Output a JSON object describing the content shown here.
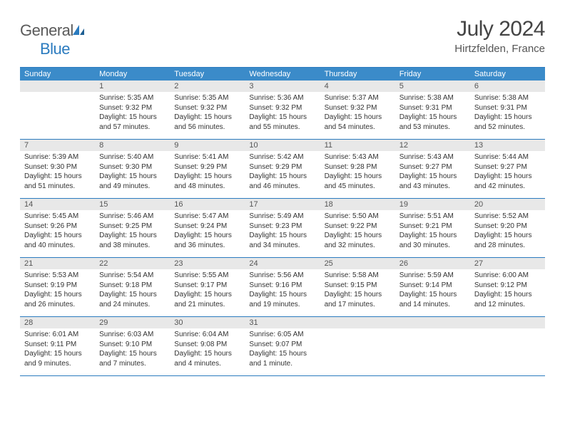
{
  "brand": {
    "general": "General",
    "blue": "Blue"
  },
  "title": "July 2024",
  "location": "Hirtzfelden, France",
  "colors": {
    "header_bg": "#3b8bc9",
    "rule": "#2b7bbf",
    "daynum_bg": "#e8e8e8",
    "text": "#333333"
  },
  "weekdays": [
    "Sunday",
    "Monday",
    "Tuesday",
    "Wednesday",
    "Thursday",
    "Friday",
    "Saturday"
  ],
  "weeks": [
    [
      {
        "n": "",
        "sunrise": "",
        "sunset": "",
        "daylight": ""
      },
      {
        "n": "1",
        "sunrise": "5:35 AM",
        "sunset": "9:32 PM",
        "daylight": "15 hours and 57 minutes."
      },
      {
        "n": "2",
        "sunrise": "5:35 AM",
        "sunset": "9:32 PM",
        "daylight": "15 hours and 56 minutes."
      },
      {
        "n": "3",
        "sunrise": "5:36 AM",
        "sunset": "9:32 PM",
        "daylight": "15 hours and 55 minutes."
      },
      {
        "n": "4",
        "sunrise": "5:37 AM",
        "sunset": "9:32 PM",
        "daylight": "15 hours and 54 minutes."
      },
      {
        "n": "5",
        "sunrise": "5:38 AM",
        "sunset": "9:31 PM",
        "daylight": "15 hours and 53 minutes."
      },
      {
        "n": "6",
        "sunrise": "5:38 AM",
        "sunset": "9:31 PM",
        "daylight": "15 hours and 52 minutes."
      }
    ],
    [
      {
        "n": "7",
        "sunrise": "5:39 AM",
        "sunset": "9:30 PM",
        "daylight": "15 hours and 51 minutes."
      },
      {
        "n": "8",
        "sunrise": "5:40 AM",
        "sunset": "9:30 PM",
        "daylight": "15 hours and 49 minutes."
      },
      {
        "n": "9",
        "sunrise": "5:41 AM",
        "sunset": "9:29 PM",
        "daylight": "15 hours and 48 minutes."
      },
      {
        "n": "10",
        "sunrise": "5:42 AM",
        "sunset": "9:29 PM",
        "daylight": "15 hours and 46 minutes."
      },
      {
        "n": "11",
        "sunrise": "5:43 AM",
        "sunset": "9:28 PM",
        "daylight": "15 hours and 45 minutes."
      },
      {
        "n": "12",
        "sunrise": "5:43 AM",
        "sunset": "9:27 PM",
        "daylight": "15 hours and 43 minutes."
      },
      {
        "n": "13",
        "sunrise": "5:44 AM",
        "sunset": "9:27 PM",
        "daylight": "15 hours and 42 minutes."
      }
    ],
    [
      {
        "n": "14",
        "sunrise": "5:45 AM",
        "sunset": "9:26 PM",
        "daylight": "15 hours and 40 minutes."
      },
      {
        "n": "15",
        "sunrise": "5:46 AM",
        "sunset": "9:25 PM",
        "daylight": "15 hours and 38 minutes."
      },
      {
        "n": "16",
        "sunrise": "5:47 AM",
        "sunset": "9:24 PM",
        "daylight": "15 hours and 36 minutes."
      },
      {
        "n": "17",
        "sunrise": "5:49 AM",
        "sunset": "9:23 PM",
        "daylight": "15 hours and 34 minutes."
      },
      {
        "n": "18",
        "sunrise": "5:50 AM",
        "sunset": "9:22 PM",
        "daylight": "15 hours and 32 minutes."
      },
      {
        "n": "19",
        "sunrise": "5:51 AM",
        "sunset": "9:21 PM",
        "daylight": "15 hours and 30 minutes."
      },
      {
        "n": "20",
        "sunrise": "5:52 AM",
        "sunset": "9:20 PM",
        "daylight": "15 hours and 28 minutes."
      }
    ],
    [
      {
        "n": "21",
        "sunrise": "5:53 AM",
        "sunset": "9:19 PM",
        "daylight": "15 hours and 26 minutes."
      },
      {
        "n": "22",
        "sunrise": "5:54 AM",
        "sunset": "9:18 PM",
        "daylight": "15 hours and 24 minutes."
      },
      {
        "n": "23",
        "sunrise": "5:55 AM",
        "sunset": "9:17 PM",
        "daylight": "15 hours and 21 minutes."
      },
      {
        "n": "24",
        "sunrise": "5:56 AM",
        "sunset": "9:16 PM",
        "daylight": "15 hours and 19 minutes."
      },
      {
        "n": "25",
        "sunrise": "5:58 AM",
        "sunset": "9:15 PM",
        "daylight": "15 hours and 17 minutes."
      },
      {
        "n": "26",
        "sunrise": "5:59 AM",
        "sunset": "9:14 PM",
        "daylight": "15 hours and 14 minutes."
      },
      {
        "n": "27",
        "sunrise": "6:00 AM",
        "sunset": "9:12 PM",
        "daylight": "15 hours and 12 minutes."
      }
    ],
    [
      {
        "n": "28",
        "sunrise": "6:01 AM",
        "sunset": "9:11 PM",
        "daylight": "15 hours and 9 minutes."
      },
      {
        "n": "29",
        "sunrise": "6:03 AM",
        "sunset": "9:10 PM",
        "daylight": "15 hours and 7 minutes."
      },
      {
        "n": "30",
        "sunrise": "6:04 AM",
        "sunset": "9:08 PM",
        "daylight": "15 hours and 4 minutes."
      },
      {
        "n": "31",
        "sunrise": "6:05 AM",
        "sunset": "9:07 PM",
        "daylight": "15 hours and 1 minute."
      },
      {
        "n": "",
        "sunrise": "",
        "sunset": "",
        "daylight": ""
      },
      {
        "n": "",
        "sunrise": "",
        "sunset": "",
        "daylight": ""
      },
      {
        "n": "",
        "sunrise": "",
        "sunset": "",
        "daylight": ""
      }
    ]
  ],
  "labels": {
    "sunrise": "Sunrise:",
    "sunset": "Sunset:",
    "daylight": "Daylight:"
  }
}
